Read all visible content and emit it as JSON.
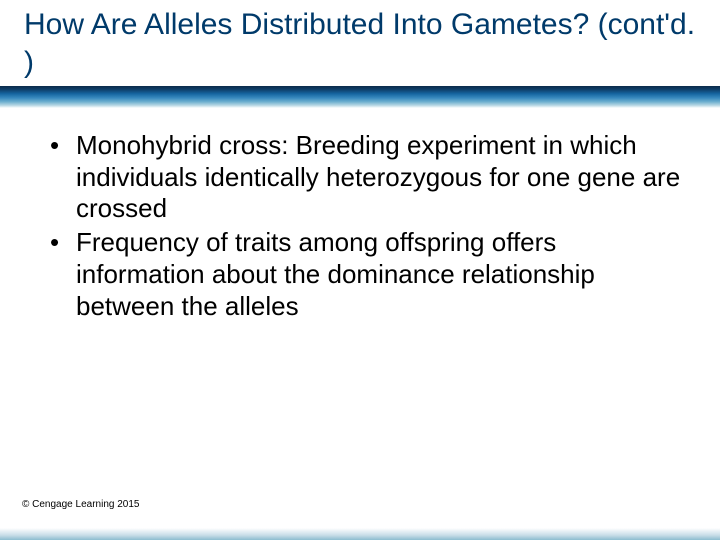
{
  "title": "How Are Alleles Distributed Into Gametes? (cont'd. )",
  "bullets": [
    "Monohybrid cross: Breeding experiment in which individuals identically heterozygous for one gene are crossed",
    "Frequency of traits among offspring offers information about the dominance relationship between the alleles"
  ],
  "copyright": "© Cengage Learning 2015",
  "colors": {
    "title_color": "#003a6a",
    "body_color": "#000000",
    "background": "#ffffff"
  },
  "typography": {
    "title_fontsize": 30,
    "body_fontsize": 26,
    "copyright_fontsize": 10,
    "font_family": "Arial"
  }
}
